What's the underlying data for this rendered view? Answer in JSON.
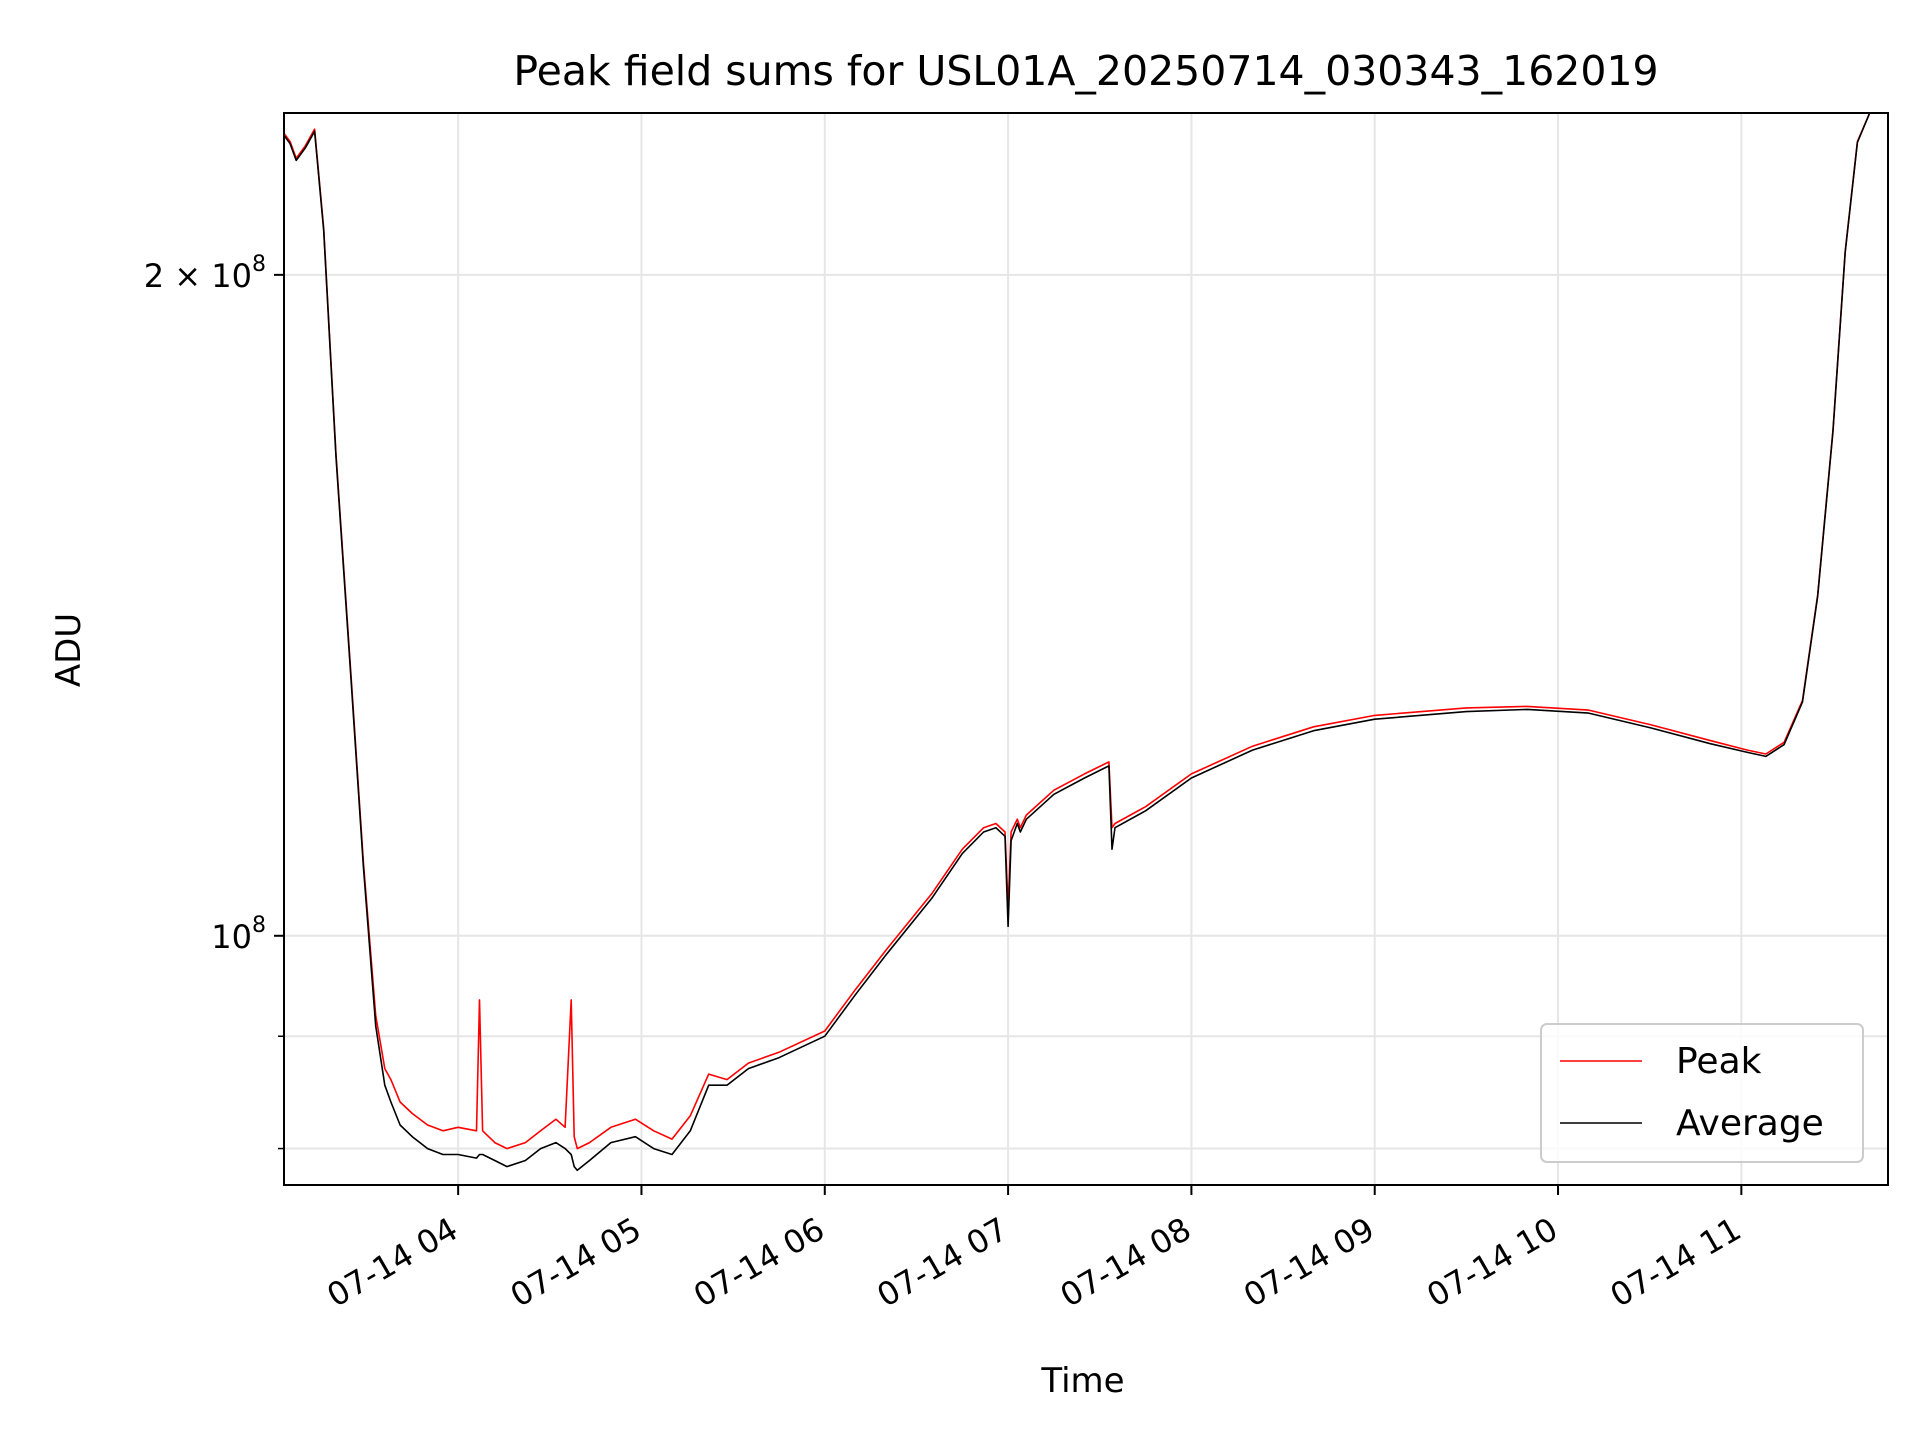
{
  "chart_data": {
    "type": "line",
    "title": "Peak field sums for USL01A_20250714_030343_162019",
    "xlabel": "Time",
    "ylabel": "ADU",
    "yscale": "log",
    "grid": true,
    "legend_position": "lower-right",
    "xlim": [
      "2025-07-14T03:03",
      "2025-07-14T11:48"
    ],
    "ylim": [
      77000000,
      237000000
    ],
    "x_ticks": [
      {
        "value": "2025-07-14T04:00",
        "label": "07-14 04"
      },
      {
        "value": "2025-07-14T05:00",
        "label": "07-14 05"
      },
      {
        "value": "2025-07-14T06:00",
        "label": "07-14 06"
      },
      {
        "value": "2025-07-14T07:00",
        "label": "07-14 07"
      },
      {
        "value": "2025-07-14T08:00",
        "label": "07-14 08"
      },
      {
        "value": "2025-07-14T09:00",
        "label": "07-14 09"
      },
      {
        "value": "2025-07-14T10:00",
        "label": "07-14 10"
      },
      {
        "value": "2025-07-14T11:00",
        "label": "07-14 11"
      }
    ],
    "y_ticks": [
      {
        "value": 100000000,
        "base": "10",
        "exp": "8",
        "mult": ""
      },
      {
        "value": 200000000,
        "base": "10",
        "exp": "8",
        "mult": "2 × "
      }
    ],
    "y_minor_ticks": [
      80000000,
      90000000
    ],
    "series": [
      {
        "name": "Peak",
        "color": "#ff0000",
        "x": [
          "2025-07-14T03:03",
          "2025-07-14T03:05",
          "2025-07-14T03:07",
          "2025-07-14T03:10",
          "2025-07-14T03:13",
          "2025-07-14T03:16",
          "2025-07-14T03:20",
          "2025-07-14T03:25",
          "2025-07-14T03:29",
          "2025-07-14T03:33",
          "2025-07-14T03:36",
          "2025-07-14T03:38",
          "2025-07-14T03:41",
          "2025-07-14T03:45",
          "2025-07-14T03:50",
          "2025-07-14T03:55",
          "2025-07-14T04:00",
          "2025-07-14T04:06",
          "2025-07-14T04:07",
          "2025-07-14T04:08",
          "2025-07-14T04:12",
          "2025-07-14T04:16",
          "2025-07-14T04:22",
          "2025-07-14T04:27",
          "2025-07-14T04:32",
          "2025-07-14T04:35",
          "2025-07-14T04:37",
          "2025-07-14T04:38",
          "2025-07-14T04:39",
          "2025-07-14T04:43",
          "2025-07-14T04:50",
          "2025-07-14T04:58",
          "2025-07-14T05:04",
          "2025-07-14T05:10",
          "2025-07-14T05:16",
          "2025-07-14T05:22",
          "2025-07-14T05:28",
          "2025-07-14T05:35",
          "2025-07-14T05:45",
          "2025-07-14T06:00",
          "2025-07-14T06:10",
          "2025-07-14T06:20",
          "2025-07-14T06:35",
          "2025-07-14T06:45",
          "2025-07-14T06:52",
          "2025-07-14T06:56",
          "2025-07-14T06:59",
          "2025-07-14T07:00",
          "2025-07-14T07:01",
          "2025-07-14T07:03",
          "2025-07-14T07:04",
          "2025-07-14T07:06",
          "2025-07-14T07:15",
          "2025-07-14T07:25",
          "2025-07-14T07:33",
          "2025-07-14T07:34",
          "2025-07-14T07:35",
          "2025-07-14T07:45",
          "2025-07-14T08:00",
          "2025-07-14T08:20",
          "2025-07-14T08:40",
          "2025-07-14T09:00",
          "2025-07-14T09:30",
          "2025-07-14T09:50",
          "2025-07-14T10:10",
          "2025-07-14T10:30",
          "2025-07-14T10:50",
          "2025-07-14T11:02",
          "2025-07-14T11:08",
          "2025-07-14T11:14",
          "2025-07-14T11:20",
          "2025-07-14T11:25",
          "2025-07-14T11:30",
          "2025-07-14T11:34",
          "2025-07-14T11:38",
          "2025-07-14T11:42",
          "2025-07-14T11:48"
        ],
        "values": [
          232000000,
          230000000,
          226000000,
          229000000,
          233000000,
          210000000,
          166000000,
          131000000,
          108000000,
          92000000,
          87000000,
          86000000,
          84000000,
          83000000,
          82000000,
          81500000,
          81800000,
          81500000,
          93500000,
          81500000,
          80500000,
          80000000,
          80500000,
          81500000,
          82500000,
          81800000,
          93500000,
          81000000,
          80000000,
          80500000,
          81800000,
          82500000,
          81500000,
          80800000,
          82800000,
          86500000,
          86000000,
          87500000,
          88500000,
          90500000,
          94500000,
          98500000,
          104500000,
          109500000,
          112000000,
          112500000,
          111500000,
          103000000,
          111500000,
          113000000,
          112000000,
          113500000,
          116500000,
          118500000,
          120000000,
          112000000,
          112500000,
          114500000,
          118500000,
          122000000,
          124500000,
          126000000,
          127000000,
          127200000,
          126700000,
          124800000,
          122700000,
          121500000,
          121000000,
          122500000,
          128000000,
          143000000,
          170000000,
          205000000,
          230000000,
          237000000,
          237000000
        ]
      },
      {
        "name": "Average",
        "color": "#000000",
        "x": [
          "2025-07-14T03:03",
          "2025-07-14T03:05",
          "2025-07-14T03:07",
          "2025-07-14T03:10",
          "2025-07-14T03:13",
          "2025-07-14T03:16",
          "2025-07-14T03:20",
          "2025-07-14T03:25",
          "2025-07-14T03:29",
          "2025-07-14T03:33",
          "2025-07-14T03:36",
          "2025-07-14T03:38",
          "2025-07-14T03:41",
          "2025-07-14T03:45",
          "2025-07-14T03:50",
          "2025-07-14T03:55",
          "2025-07-14T04:00",
          "2025-07-14T04:06",
          "2025-07-14T04:07",
          "2025-07-14T04:08",
          "2025-07-14T04:12",
          "2025-07-14T04:16",
          "2025-07-14T04:22",
          "2025-07-14T04:27",
          "2025-07-14T04:32",
          "2025-07-14T04:35",
          "2025-07-14T04:37",
          "2025-07-14T04:38",
          "2025-07-14T04:39",
          "2025-07-14T04:43",
          "2025-07-14T04:50",
          "2025-07-14T04:58",
          "2025-07-14T05:04",
          "2025-07-14T05:10",
          "2025-07-14T05:16",
          "2025-07-14T05:22",
          "2025-07-14T05:28",
          "2025-07-14T05:35",
          "2025-07-14T05:45",
          "2025-07-14T06:00",
          "2025-07-14T06:10",
          "2025-07-14T06:20",
          "2025-07-14T06:35",
          "2025-07-14T06:45",
          "2025-07-14T06:52",
          "2025-07-14T06:56",
          "2025-07-14T06:59",
          "2025-07-14T07:00",
          "2025-07-14T07:01",
          "2025-07-14T07:03",
          "2025-07-14T07:04",
          "2025-07-14T07:06",
          "2025-07-14T07:15",
          "2025-07-14T07:25",
          "2025-07-14T07:33",
          "2025-07-14T07:34",
          "2025-07-14T07:35",
          "2025-07-14T07:45",
          "2025-07-14T08:00",
          "2025-07-14T08:20",
          "2025-07-14T08:40",
          "2025-07-14T09:00",
          "2025-07-14T09:30",
          "2025-07-14T09:50",
          "2025-07-14T10:10",
          "2025-07-14T10:30",
          "2025-07-14T10:50",
          "2025-07-14T11:02",
          "2025-07-14T11:08",
          "2025-07-14T11:14",
          "2025-07-14T11:20",
          "2025-07-14T11:25",
          "2025-07-14T11:30",
          "2025-07-14T11:34",
          "2025-07-14T11:38",
          "2025-07-14T11:42",
          "2025-07-14T11:48"
        ],
        "values": [
          231500000,
          229500000,
          225500000,
          228500000,
          232500000,
          209500000,
          165500000,
          130500000,
          107500000,
          91000000,
          85500000,
          84000000,
          82000000,
          81000000,
          80000000,
          79500000,
          79500000,
          79200000,
          79500000,
          79500000,
          79000000,
          78500000,
          79000000,
          80000000,
          80500000,
          80000000,
          79500000,
          78500000,
          78200000,
          79000000,
          80500000,
          81000000,
          80000000,
          79500000,
          81500000,
          85500000,
          85500000,
          87000000,
          88000000,
          90000000,
          94000000,
          98000000,
          104000000,
          109000000,
          111500000,
          112000000,
          111000000,
          101000000,
          110500000,
          112500000,
          111500000,
          113000000,
          116000000,
          118000000,
          119500000,
          109500000,
          112000000,
          114000000,
          118000000,
          121500000,
          124000000,
          125500000,
          126500000,
          126800000,
          126300000,
          124400000,
          122300000,
          121200000,
          120700000,
          122200000,
          127800000,
          142800000,
          169800000,
          204800000,
          229800000,
          237000000,
          237000000
        ]
      }
    ]
  }
}
